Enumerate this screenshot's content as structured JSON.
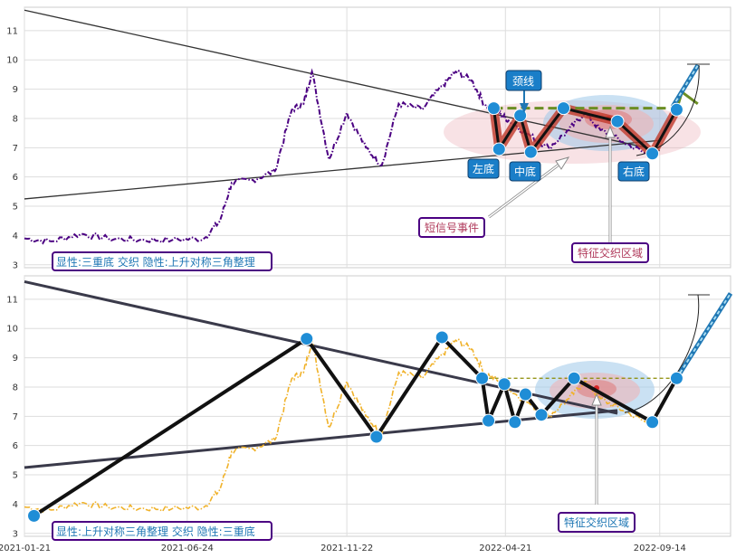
{
  "chart_data": [
    {
      "type": "line",
      "panel": "top",
      "title": "",
      "xlabel": "",
      "ylabel": "",
      "x_range": [
        "2021-01-21",
        "2022-11-20"
      ],
      "ylim": [
        2.9,
        11.8
      ],
      "yticks": [
        3,
        4,
        5,
        6,
        7,
        8,
        9,
        10,
        11
      ],
      "grid": true,
      "series": [
        {
          "style": "dash-dot",
          "color": "#4b0082",
          "x": [
            "2021-01-21",
            "2021-02-15",
            "2021-03-15",
            "2021-04-10",
            "2021-05-10",
            "2021-06-10",
            "2021-07-10",
            "2021-07-25",
            "2021-08-05",
            "2021-08-25",
            "2021-09-15",
            "2021-10-01",
            "2021-10-12",
            "2021-10-20",
            "2021-11-05",
            "2021-11-22",
            "2021-12-10",
            "2021-12-25",
            "2022-01-10",
            "2022-02-01",
            "2022-02-20",
            "2022-03-05",
            "2022-03-20",
            "2022-04-01",
            "2022-04-15",
            "2022-04-25",
            "2022-05-15",
            "2022-06-01",
            "2022-06-20",
            "2022-07-05",
            "2022-07-20",
            "2022-08-10",
            "2022-09-01"
          ],
          "values": [
            3.9,
            3.8,
            4.05,
            3.9,
            3.85,
            3.85,
            3.9,
            4.5,
            5.8,
            5.9,
            6.2,
            8.3,
            8.5,
            9.6,
            6.6,
            8.2,
            7.0,
            6.4,
            8.5,
            8.3,
            9.1,
            9.6,
            9.3,
            8.5,
            8.2,
            7.9,
            7.4,
            7.0,
            7.6,
            8.2,
            7.6,
            7.2,
            6.8
          ]
        }
      ],
      "trend_lines": [
        {
          "name": "upper",
          "x": [
            "2021-01-21",
            "2022-09-14"
          ],
          "values": [
            11.7,
            6.9
          ]
        },
        {
          "name": "lower",
          "x": [
            "2021-01-21",
            "2022-09-14"
          ],
          "values": [
            5.25,
            7.25
          ]
        }
      ],
      "pattern": {
        "x": [
          "2022-04-10",
          "2022-04-15",
          "2022-05-05",
          "2022-05-15",
          "2022-06-15",
          "2022-08-05",
          "2022-09-07",
          "2022-09-30"
        ],
        "values": [
          8.35,
          6.95,
          8.1,
          6.85,
          8.35,
          7.9,
          6.8,
          8.3
        ],
        "neckline_value": 8.35
      },
      "projection": {
        "x": [
          "2022-09-30",
          "2022-10-05",
          "2022-10-20",
          "2022-11-15"
        ],
        "values": [
          8.3,
          8.9,
          8.5,
          9.9
        ]
      },
      "annotations": [
        {
          "key": "left_bottom",
          "text": "左底"
        },
        {
          "key": "mid_bottom",
          "text": "中底"
        },
        {
          "key": "right_bottom",
          "text": "右底"
        },
        {
          "key": "neckline",
          "text": "颈线"
        },
        {
          "key": "short_signal",
          "text": "短信号事件"
        },
        {
          "key": "feature_zone",
          "text": "特征交织区域"
        }
      ],
      "caption": "显性:三重底 交织 隐性:上升对称三角整理"
    },
    {
      "type": "line",
      "panel": "bottom",
      "title": "",
      "xlabel": "",
      "ylabel": "",
      "x_range": [
        "2021-01-21",
        "2022-11-20"
      ],
      "ylim": [
        2.9,
        11.8
      ],
      "yticks": [
        3,
        4,
        5,
        6,
        7,
        8,
        9,
        10,
        11
      ],
      "xticks": [
        "2021-01-21",
        "2021-06-24",
        "2021-11-22",
        "2022-04-21",
        "2022-09-14"
      ],
      "grid": true,
      "series": [
        {
          "style": "dash-dot",
          "color": "#f0b22a",
          "x": [
            "2021-01-21",
            "2021-02-15",
            "2021-03-15",
            "2021-04-10",
            "2021-05-10",
            "2021-06-10",
            "2021-07-10",
            "2021-07-25",
            "2021-08-05",
            "2021-08-25",
            "2021-09-15",
            "2021-10-01",
            "2021-10-12",
            "2021-10-20",
            "2021-11-05",
            "2021-11-22",
            "2021-12-10",
            "2021-12-25",
            "2022-01-10",
            "2022-02-01",
            "2022-02-20",
            "2022-03-05",
            "2022-03-20",
            "2022-04-01",
            "2022-04-15",
            "2022-04-25",
            "2022-05-15",
            "2022-06-01",
            "2022-06-20",
            "2022-07-05",
            "2022-07-20",
            "2022-08-10",
            "2022-09-01"
          ],
          "values": [
            3.9,
            3.8,
            4.05,
            3.9,
            3.85,
            3.85,
            3.9,
            4.5,
            5.8,
            5.9,
            6.2,
            8.3,
            8.5,
            9.6,
            6.6,
            8.2,
            7.0,
            6.4,
            8.5,
            8.3,
            9.1,
            9.6,
            9.3,
            8.5,
            8.2,
            7.9,
            7.4,
            7.0,
            7.6,
            8.2,
            7.6,
            7.2,
            6.8
          ]
        }
      ],
      "trend_lines": [
        {
          "name": "upper",
          "x": [
            "2021-01-21",
            "2022-08-05"
          ],
          "values": [
            11.6,
            7.1
          ]
        },
        {
          "name": "lower",
          "x": [
            "2021-01-21",
            "2022-08-05"
          ],
          "values": [
            5.25,
            7.2
          ]
        }
      ],
      "pattern": {
        "x": [
          "2021-01-30",
          "2021-10-15",
          "2021-12-20",
          "2022-02-20",
          "2022-03-30",
          "2022-04-05",
          "2022-04-20",
          "2022-04-30",
          "2022-05-10",
          "2022-05-25",
          "2022-06-25",
          "2022-09-07",
          "2022-09-30"
        ],
        "values": [
          3.6,
          9.65,
          6.3,
          9.7,
          8.3,
          6.85,
          8.1,
          6.8,
          7.75,
          7.05,
          8.3,
          6.8,
          8.3
        ],
        "neckline_value": 8.3
      },
      "projection": {
        "x": [
          "2022-09-30",
          "2022-11-20"
        ],
        "values": [
          8.3,
          11.2
        ]
      },
      "annotations": [
        {
          "key": "feature_zone",
          "text": "特征交织区域"
        }
      ],
      "caption": "显性:上升对称三角整理 交织 隐性:三重底"
    }
  ]
}
